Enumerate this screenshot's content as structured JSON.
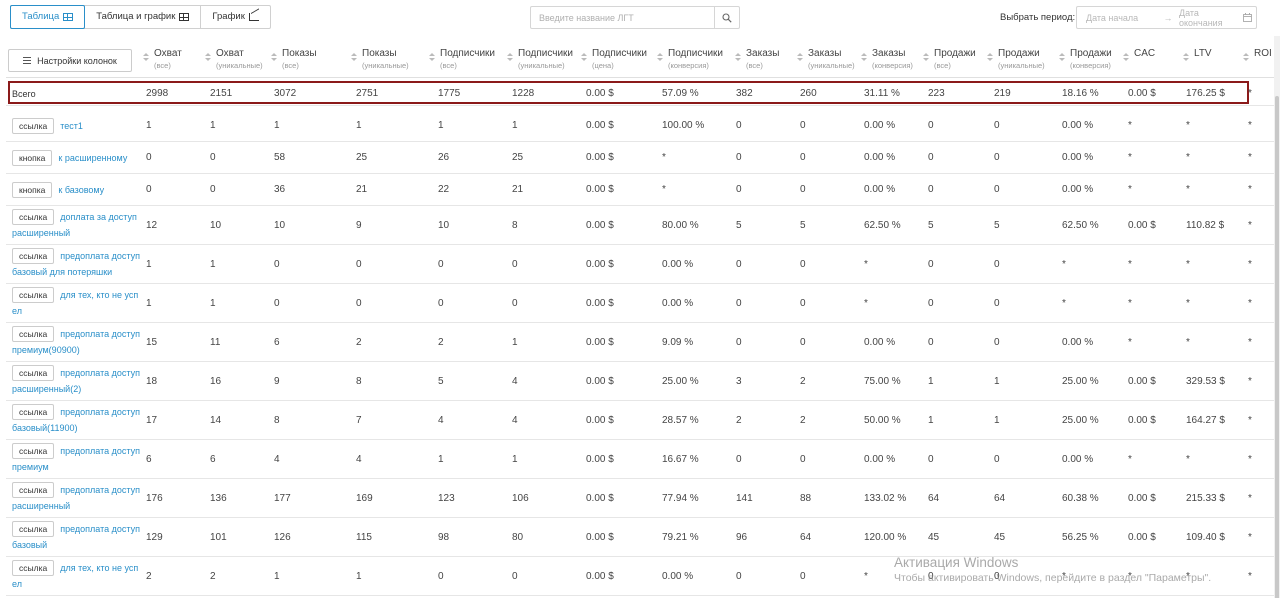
{
  "tabs": [
    {
      "label": "Таблица",
      "icon": "grid-icon",
      "active": true
    },
    {
      "label": "Таблица и график",
      "icon": "table-chart-icon",
      "active": false
    },
    {
      "label": "График",
      "icon": "line-chart-icon",
      "active": false
    }
  ],
  "search": {
    "placeholder": "Введите название ЛГТ",
    "icon": "search-icon"
  },
  "period": {
    "label": "Выбрать период:",
    "start_placeholder": "Дата начала",
    "arrow": "→",
    "end_placeholder": "Дата окончания",
    "icon": "calendar-icon"
  },
  "table": {
    "settings_label": "Настройки колонок",
    "columns": [
      {
        "main": "Охват",
        "sub": "(все)"
      },
      {
        "main": "Охват",
        "sub": "(уникальные)"
      },
      {
        "main": "Показы",
        "sub": "(все)"
      },
      {
        "main": "Показы",
        "sub": "(уникальные)"
      },
      {
        "main": "Подписчики",
        "sub": "(все)"
      },
      {
        "main": "Подписчики",
        "sub": "(уникальные)"
      },
      {
        "main": "Подписчики",
        "sub": "(цена)"
      },
      {
        "main": "Подписчики",
        "sub": "(конверсия)"
      },
      {
        "main": "Заказы",
        "sub": "(все)"
      },
      {
        "main": "Заказы",
        "sub": "(уникальные)"
      },
      {
        "main": "Заказы",
        "sub": "(конверсия)"
      },
      {
        "main": "Продажи",
        "sub": "(все)"
      },
      {
        "main": "Продажи",
        "sub": "(уникальные)"
      },
      {
        "main": "Продажи",
        "sub": "(конверсия)"
      },
      {
        "main": "CAC",
        "sub": ""
      },
      {
        "main": "LTV",
        "sub": ""
      },
      {
        "main": "ROI",
        "sub": ""
      }
    ],
    "total": {
      "label": "Всего",
      "values": [
        "2998",
        "2151",
        "3072",
        "2751",
        "1775",
        "1228",
        "0.00 $",
        "57.09 %",
        "382",
        "260",
        "31.11 %",
        "223",
        "219",
        "18.16 %",
        "0.00 $",
        "176.25 $",
        "*"
      ]
    },
    "rows": [
      {
        "type": "ссылка",
        "name": "тест1",
        "values": [
          "1",
          "1",
          "1",
          "1",
          "1",
          "1",
          "0.00 $",
          "100.00 %",
          "0",
          "0",
          "0.00 %",
          "0",
          "0",
          "0.00 %",
          "*",
          "*",
          "*"
        ]
      },
      {
        "type": "кнопка",
        "name": "к расширенному",
        "values": [
          "0",
          "0",
          "58",
          "25",
          "26",
          "25",
          "0.00 $",
          "*",
          "0",
          "0",
          "0.00 %",
          "0",
          "0",
          "0.00 %",
          "*",
          "*",
          "*"
        ]
      },
      {
        "type": "кнопка",
        "name": "к базовому",
        "values": [
          "0",
          "0",
          "36",
          "21",
          "22",
          "21",
          "0.00 $",
          "*",
          "0",
          "0",
          "0.00 %",
          "0",
          "0",
          "0.00 %",
          "*",
          "*",
          "*"
        ]
      },
      {
        "type": "ссылка",
        "name": "доплата за доступ расширенный",
        "values": [
          "12",
          "10",
          "10",
          "9",
          "10",
          "8",
          "0.00 $",
          "80.00 %",
          "5",
          "5",
          "62.50 %",
          "5",
          "5",
          "62.50 %",
          "0.00 $",
          "110.82 $",
          "*"
        ]
      },
      {
        "type": "ссылка",
        "name": "предоплата доступ базовый для потеряшки",
        "values": [
          "1",
          "1",
          "0",
          "0",
          "0",
          "0",
          "0.00 $",
          "0.00 %",
          "0",
          "0",
          "*",
          "0",
          "0",
          "*",
          "*",
          "*",
          "*"
        ]
      },
      {
        "type": "ссылка",
        "name": "для тех, кто не успел",
        "values": [
          "1",
          "1",
          "0",
          "0",
          "0",
          "0",
          "0.00 $",
          "0.00 %",
          "0",
          "0",
          "*",
          "0",
          "0",
          "*",
          "*",
          "*",
          "*"
        ]
      },
      {
        "type": "ссылка",
        "name": "предоплата доступ премиум(90900)",
        "values": [
          "15",
          "11",
          "6",
          "2",
          "2",
          "1",
          "0.00 $",
          "9.09 %",
          "0",
          "0",
          "0.00 %",
          "0",
          "0",
          "0.00 %",
          "*",
          "*",
          "*"
        ]
      },
      {
        "type": "ссылка",
        "name": "предоплата доступ расширенный(2)",
        "values": [
          "18",
          "16",
          "9",
          "8",
          "5",
          "4",
          "0.00 $",
          "25.00 %",
          "3",
          "2",
          "75.00 %",
          "1",
          "1",
          "25.00 %",
          "0.00 $",
          "329.53 $",
          "*"
        ]
      },
      {
        "type": "ссылка",
        "name": "предоплата доступ базовый(11900)",
        "values": [
          "17",
          "14",
          "8",
          "7",
          "4",
          "4",
          "0.00 $",
          "28.57 %",
          "2",
          "2",
          "50.00 %",
          "1",
          "1",
          "25.00 %",
          "0.00 $",
          "164.27 $",
          "*"
        ]
      },
      {
        "type": "ссылка",
        "name": "предоплата доступ премиум",
        "values": [
          "6",
          "6",
          "4",
          "4",
          "1",
          "1",
          "0.00 $",
          "16.67 %",
          "0",
          "0",
          "0.00 %",
          "0",
          "0",
          "0.00 %",
          "*",
          "*",
          "*"
        ]
      },
      {
        "type": "ссылка",
        "name": "предоплата доступ расширенный",
        "values": [
          "176",
          "136",
          "177",
          "169",
          "123",
          "106",
          "0.00 $",
          "77.94 %",
          "141",
          "88",
          "133.02 %",
          "64",
          "64",
          "60.38 %",
          "0.00 $",
          "215.33 $",
          "*"
        ]
      },
      {
        "type": "ссылка",
        "name": "предоплата доступ базовый",
        "values": [
          "129",
          "101",
          "126",
          "115",
          "98",
          "80",
          "0.00 $",
          "79.21 %",
          "96",
          "64",
          "120.00 %",
          "45",
          "45",
          "56.25 %",
          "0.00 $",
          "109.40 $",
          "*"
        ]
      },
      {
        "type": "ссылка",
        "name": "для тех, кто не успел",
        "values": [
          "2",
          "2",
          "1",
          "1",
          "0",
          "0",
          "0.00 $",
          "0.00 %",
          "0",
          "0",
          "*",
          "0",
          "0",
          "*",
          "*",
          "*",
          "*"
        ]
      }
    ]
  },
  "watermark": {
    "line1": "Активация Windows",
    "line2": "Чтобы активировать Windows, перейдите в раздел \"Параметры\"."
  },
  "colors": {
    "accent": "#2a8fc9",
    "total_frame": "#8b1a1a",
    "text": "#444444",
    "muted": "#999999"
  }
}
